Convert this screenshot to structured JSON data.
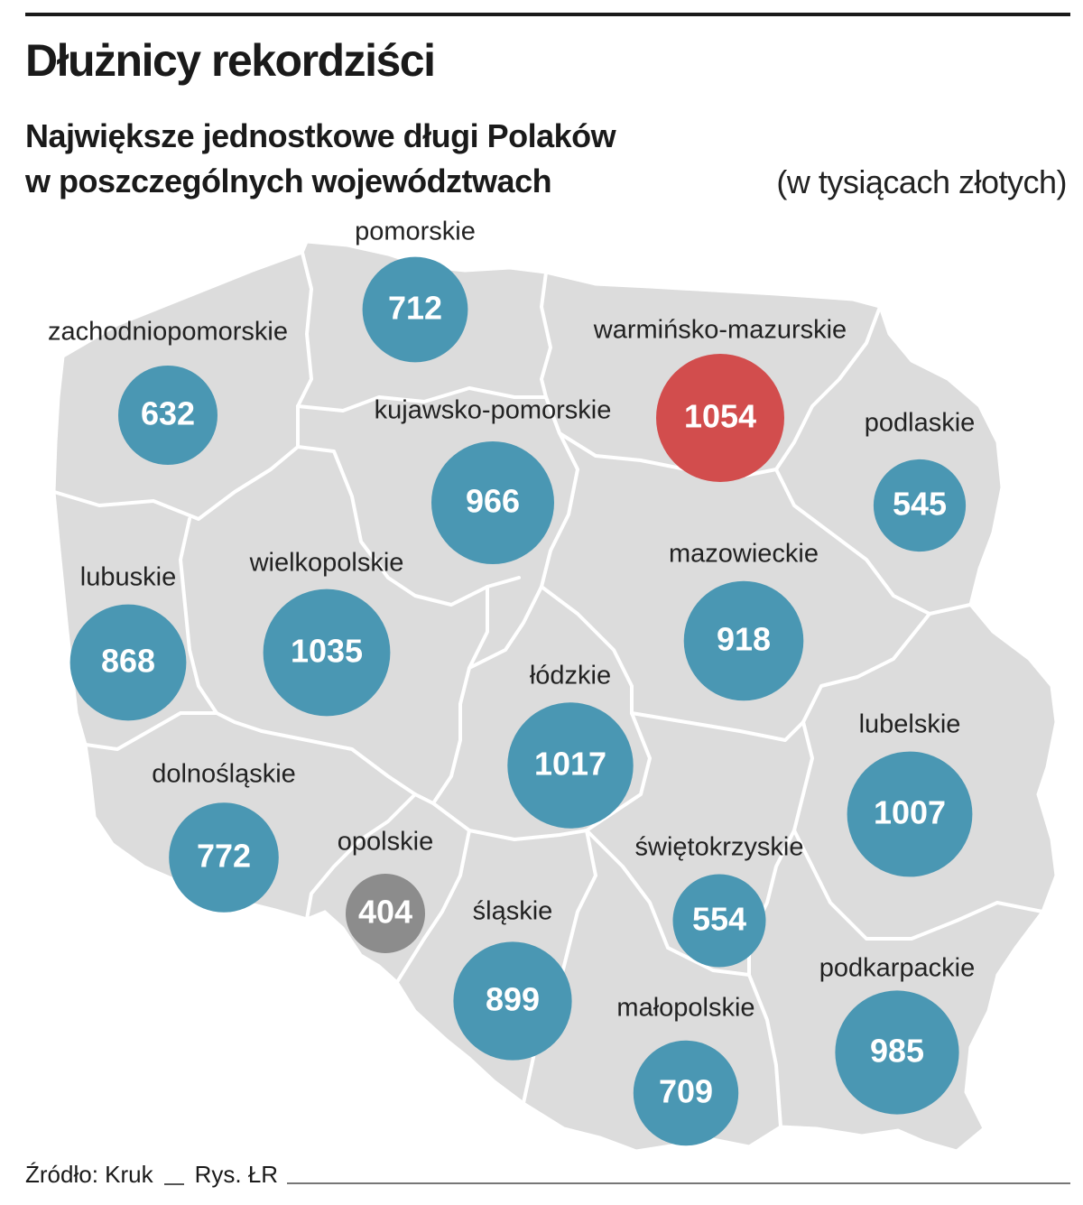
{
  "title": "Dłużnicy rekordziści",
  "subtitle_line1": "Największe jednostkowe długi Polaków",
  "subtitle_line2": "w poszczególnych województwach",
  "unit_note": "(w tysiącach złotych)",
  "colors": {
    "map_fill": "#dcdcdc",
    "border": "#ffffff",
    "bubble_default": "#4a97b3",
    "bubble_max": "#d24d4d",
    "bubble_min": "#8c8c8c"
  },
  "regions": [
    {
      "id": "pomorskie",
      "name": "pomorskie",
      "value": 712,
      "category": "default"
    },
    {
      "id": "zachodniopomorskie",
      "name": "zachodniopomorskie",
      "value": 632,
      "category": "default"
    },
    {
      "id": "warminsko-mazurskie",
      "name": "warmińsko-mazurskie",
      "value": 1054,
      "category": "max"
    },
    {
      "id": "kujawsko-pomorskie",
      "name": "kujawsko-pomorskie",
      "value": 966,
      "category": "default"
    },
    {
      "id": "podlaskie",
      "name": "podlaskie",
      "value": 545,
      "category": "default"
    },
    {
      "id": "lubuskie",
      "name": "lubuskie",
      "value": 868,
      "category": "default"
    },
    {
      "id": "wielkopolskie",
      "name": "wielkopolskie",
      "value": 1035,
      "category": "default"
    },
    {
      "id": "mazowieckie",
      "name": "mazowieckie",
      "value": 918,
      "category": "default"
    },
    {
      "id": "lodzkie",
      "name": "łódzkie",
      "value": 1017,
      "category": "default"
    },
    {
      "id": "lubelskie",
      "name": "lubelskie",
      "value": 1007,
      "category": "default"
    },
    {
      "id": "dolnoslaskie",
      "name": "dolnośląskie",
      "value": 772,
      "category": "default"
    },
    {
      "id": "opolskie",
      "name": "opolskie",
      "value": 404,
      "category": "min"
    },
    {
      "id": "swietokrzyskie",
      "name": "świętokrzyskie",
      "value": 554,
      "category": "default"
    },
    {
      "id": "slaskie",
      "name": "śląskie",
      "value": 899,
      "category": "default"
    },
    {
      "id": "podkarpackie",
      "name": "podkarpackie",
      "value": 985,
      "category": "default"
    },
    {
      "id": "malopolskie",
      "name": "małopolskie",
      "value": 709,
      "category": "default"
    }
  ],
  "footer": {
    "source": "Źródło: Kruk",
    "credit": "Rys. ŁR"
  }
}
